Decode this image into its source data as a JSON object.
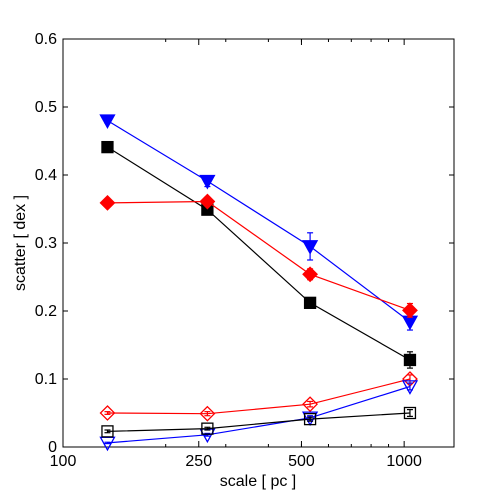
{
  "chart_data": {
    "type": "line",
    "title": "",
    "xlabel": "scale [ pc ]",
    "ylabel": "scatter [ dex ]",
    "xscale": "log",
    "xlim": [
      100,
      1400
    ],
    "ylim": [
      0,
      0.6
    ],
    "grid": false,
    "legend": "none",
    "x_ticks": [
      100,
      250,
      500,
      1000
    ],
    "x_tick_labels": [
      "100",
      "250",
      "500",
      "1000"
    ],
    "y_ticks": [
      0,
      0.1,
      0.2,
      0.3,
      0.4,
      0.5,
      0.6
    ],
    "y_tick_labels": [
      "0",
      "0.1",
      "0.2",
      "0.3",
      "0.4",
      "0.5",
      "0.6"
    ],
    "series": [
      {
        "color": "#0000ff",
        "marker": "triangle-down",
        "filled": true,
        "x": [
          135,
          265,
          530,
          1040
        ],
        "y": [
          0.48,
          0.391,
          0.295,
          0.184
        ],
        "err": [
          0.004,
          0.008,
          0.02,
          0.012
        ]
      },
      {
        "color": "#000000",
        "marker": "square",
        "filled": true,
        "x": [
          135,
          265,
          530,
          1040
        ],
        "y": [
          0.441,
          0.349,
          0.212,
          0.128
        ],
        "err": [
          0.004,
          0.005,
          0.006,
          0.012
        ]
      },
      {
        "color": "#ff0000",
        "marker": "diamond",
        "filled": true,
        "x": [
          135,
          265,
          530,
          1040
        ],
        "y": [
          0.359,
          0.361,
          0.254,
          0.201
        ],
        "err": [
          0.003,
          0.006,
          0.008,
          0.01
        ]
      },
      {
        "color": "#ff0000",
        "marker": "diamond",
        "filled": false,
        "x": [
          135,
          265,
          530,
          1040
        ],
        "y": [
          0.05,
          0.049,
          0.063,
          0.1
        ],
        "err": [
          0.002,
          0.003,
          0.004,
          0.006
        ]
      },
      {
        "color": "#0000ff",
        "marker": "triangle-down",
        "filled": false,
        "x": [
          135,
          265,
          530,
          1040
        ],
        "y": [
          0.006,
          0.018,
          0.043,
          0.089
        ],
        "err": [
          0.001,
          0.002,
          0.003,
          0.005
        ]
      },
      {
        "color": "#000000",
        "marker": "square",
        "filled": false,
        "x": [
          135,
          265,
          530,
          1040
        ],
        "y": [
          0.023,
          0.027,
          0.041,
          0.05
        ],
        "err": [
          0.002,
          0.002,
          0.003,
          0.005
        ]
      }
    ]
  }
}
